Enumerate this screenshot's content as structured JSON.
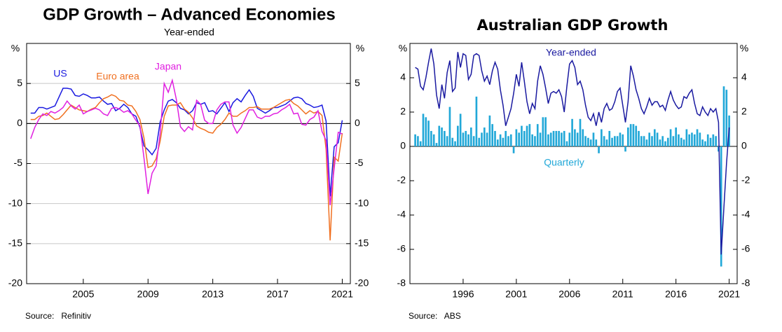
{
  "chart_data": [
    {
      "type": "line",
      "title": "GDP Growth – Advanced Economies",
      "subtitle": "Year-ended",
      "y_unit": "%",
      "source": "Source:   Refinitiv",
      "xlim": [
        2001.5,
        2021.5
      ],
      "xticks": [
        2005,
        2009,
        2013,
        2017,
        2021
      ],
      "ylim": [
        -20,
        10
      ],
      "yticks": [
        -20,
        -15,
        -10,
        -5,
        0,
        5
      ],
      "grid": true,
      "x": [
        2001.75,
        2002,
        2002.25,
        2002.5,
        2002.75,
        2003,
        2003.25,
        2003.5,
        2003.75,
        2004,
        2004.25,
        2004.5,
        2004.75,
        2005,
        2005.25,
        2005.5,
        2005.75,
        2006,
        2006.25,
        2006.5,
        2006.75,
        2007,
        2007.25,
        2007.5,
        2007.75,
        2008,
        2008.25,
        2008.5,
        2008.75,
        2009,
        2009.25,
        2009.5,
        2009.75,
        2010,
        2010.25,
        2010.5,
        2010.75,
        2011,
        2011.25,
        2011.5,
        2011.75,
        2012,
        2012.25,
        2012.5,
        2012.75,
        2013,
        2013.25,
        2013.5,
        2013.75,
        2014,
        2014.25,
        2014.5,
        2014.75,
        2015,
        2015.25,
        2015.5,
        2015.75,
        2016,
        2016.25,
        2016.5,
        2016.75,
        2017,
        2017.25,
        2017.5,
        2017.75,
        2018,
        2018.25,
        2018.5,
        2018.75,
        2019,
        2019.25,
        2019.5,
        2019.75,
        2020,
        2020.25,
        2020.5,
        2020.75,
        2021
      ],
      "series": [
        {
          "name": "US",
          "color": "#1a1ae0",
          "values": [
            1.3,
            1.3,
            2.0,
            2.0,
            1.8,
            2.0,
            2.2,
            3.3,
            4.4,
            4.4,
            4.3,
            3.5,
            3.4,
            3.7,
            3.5,
            3.2,
            3.2,
            3.3,
            2.8,
            2.4,
            2.5,
            1.6,
            1.9,
            2.4,
            2.0,
            1.2,
            0.9,
            -0.5,
            -2.8,
            -3.3,
            -3.9,
            -3.1,
            0.2,
            1.7,
            2.8,
            3.0,
            2.6,
            1.9,
            1.7,
            1.2,
            1.6,
            2.6,
            2.4,
            2.6,
            1.5,
            1.6,
            1.2,
            1.9,
            2.6,
            1.5,
            2.6,
            3.1,
            2.7,
            3.5,
            4.2,
            3.4,
            1.9,
            1.6,
            1.3,
            1.6,
            2.0,
            2.0,
            2.2,
            2.4,
            2.8,
            3.2,
            3.3,
            3.1,
            2.5,
            2.3,
            2.0,
            2.1,
            2.3,
            0.3,
            -9.1,
            -2.9,
            -2.4,
            0.4
          ]
        },
        {
          "name": "Euro area",
          "color": "#f07020",
          "values": [
            0.5,
            0.5,
            0.9,
            1.0,
            1.3,
            0.9,
            0.5,
            0.6,
            1.1,
            1.7,
            2.3,
            2.0,
            1.7,
            1.6,
            1.5,
            1.8,
            2.0,
            2.6,
            3.1,
            3.3,
            3.6,
            3.4,
            2.9,
            2.8,
            2.3,
            2.2,
            1.5,
            0.5,
            -1.8,
            -5.5,
            -5.3,
            -4.4,
            -2.2,
            0.9,
            2.2,
            2.3,
            2.3,
            2.6,
            1.8,
            1.4,
            0.7,
            -0.3,
            -0.6,
            -0.8,
            -1.1,
            -1.2,
            -0.5,
            -0.1,
            0.5,
            1.3,
            0.9,
            0.9,
            1.3,
            1.6,
            2.0,
            2.0,
            2.1,
            1.8,
            1.8,
            1.8,
            2.0,
            2.3,
            2.6,
            2.9,
            3.0,
            2.5,
            2.2,
            1.7,
            1.2,
            1.6,
            1.3,
            1.5,
            1.0,
            -3.2,
            -14.6,
            -4.2,
            -4.7,
            -1.2
          ]
        },
        {
          "name": "Japan",
          "color": "#e020e0",
          "values": [
            -1.9,
            -0.5,
            0.5,
            1.2,
            1.0,
            1.5,
            1.3,
            1.6,
            2.0,
            2.8,
            2.2,
            1.8,
            2.3,
            1.2,
            1.5,
            1.7,
            1.9,
            1.7,
            1.2,
            1.0,
            1.9,
            2.0,
            1.8,
            1.4,
            1.6,
            1.2,
            0.4,
            -0.3,
            -4.3,
            -8.8,
            -6.2,
            -5.3,
            -1.2,
            5.0,
            3.9,
            5.4,
            3.0,
            -0.4,
            -1.0,
            -0.4,
            -0.8,
            2.9,
            2.4,
            0.4,
            0.0,
            0.0,
            1.7,
            2.4,
            2.7,
            2.7,
            -0.2,
            -1.2,
            -0.5,
            0.6,
            1.7,
            1.7,
            0.8,
            0.6,
            0.9,
            0.9,
            1.2,
            1.3,
            1.7,
            2.0,
            2.4,
            1.2,
            1.3,
            -0.1,
            -0.2,
            0.5,
            0.8,
            1.6,
            -1.0,
            -2.1,
            -10.2,
            -5.6,
            -1.1,
            -1.3
          ]
        }
      ]
    },
    {
      "type": "combo",
      "title": "Australian GDP Growth",
      "y_unit": "%",
      "source": "Source:   ABS",
      "xlim": [
        1991,
        2021.75
      ],
      "xticks": [
        1996,
        2001,
        2006,
        2011,
        2016,
        2021
      ],
      "ylim": [
        -8,
        6
      ],
      "yticks": [
        -8,
        -6,
        -4,
        -2,
        0,
        2,
        4
      ],
      "grid": false,
      "x": [
        1991.5,
        1991.75,
        1992,
        1992.25,
        1992.5,
        1992.75,
        1993,
        1993.25,
        1993.5,
        1993.75,
        1994,
        1994.25,
        1994.5,
        1994.75,
        1995,
        1995.25,
        1995.5,
        1995.75,
        1996,
        1996.25,
        1996.5,
        1996.75,
        1997,
        1997.25,
        1997.5,
        1997.75,
        1998,
        1998.25,
        1998.5,
        1998.75,
        1999,
        1999.25,
        1999.5,
        1999.75,
        2000,
        2000.25,
        2000.5,
        2000.75,
        2001,
        2001.25,
        2001.5,
        2001.75,
        2002,
        2002.25,
        2002.5,
        2002.75,
        2003,
        2003.25,
        2003.5,
        2003.75,
        2004,
        2004.25,
        2004.5,
        2004.75,
        2005,
        2005.25,
        2005.5,
        2005.75,
        2006,
        2006.25,
        2006.5,
        2006.75,
        2007,
        2007.25,
        2007.5,
        2007.75,
        2008,
        2008.25,
        2008.5,
        2008.75,
        2009,
        2009.25,
        2009.5,
        2009.75,
        2010,
        2010.25,
        2010.5,
        2010.75,
        2011,
        2011.25,
        2011.5,
        2011.75,
        2012,
        2012.25,
        2012.5,
        2012.75,
        2013,
        2013.25,
        2013.5,
        2013.75,
        2014,
        2014.25,
        2014.5,
        2014.75,
        2015,
        2015.25,
        2015.5,
        2015.75,
        2016,
        2016.25,
        2016.5,
        2016.75,
        2017,
        2017.25,
        2017.5,
        2017.75,
        2018,
        2018.25,
        2018.5,
        2018.75,
        2019,
        2019.25,
        2019.5,
        2019.75,
        2020,
        2020.25,
        2020.5,
        2020.75,
        2021
      ],
      "series": [
        {
          "name": "Quarterly",
          "type": "bar",
          "color": "#22a8d8",
          "values": [
            0.7,
            0.6,
            0.3,
            1.9,
            1.7,
            1.5,
            0.9,
            0.7,
            0.2,
            1.2,
            1.1,
            0.9,
            0.6,
            2.3,
            0.5,
            0.3,
            1.2,
            1.9,
            0.8,
            0.9,
            0.7,
            1.1,
            0.6,
            2.9,
            0.5,
            0.8,
            1.1,
            0.8,
            1.8,
            1.3,
            0.9,
            0.4,
            0.7,
            0.5,
            0.9,
            0.6,
            0.7,
            -0.4,
            1.0,
            0.8,
            1.2,
            0.9,
            1.2,
            1.3,
            0.7,
            0.6,
            1.3,
            0.8,
            1.7,
            1.7,
            0.7,
            0.8,
            0.9,
            0.9,
            0.9,
            0.8,
            0.9,
            0.3,
            0.8,
            1.6,
            1.0,
            0.8,
            1.6,
            1.0,
            0.6,
            0.5,
            0.4,
            0.8,
            0.4,
            -0.4,
            1.0,
            0.6,
            0.4,
            0.9,
            0.5,
            0.6,
            0.6,
            0.8,
            0.7,
            -0.3,
            1.1,
            1.3,
            1.3,
            1.2,
            0.9,
            0.6,
            0.6,
            0.4,
            0.8,
            0.6,
            1.0,
            0.8,
            0.4,
            0.6,
            0.3,
            0.5,
            1.0,
            0.6,
            1.1,
            0.7,
            0.5,
            0.4,
            1.0,
            0.7,
            0.8,
            0.7,
            1.0,
            0.8,
            0.4,
            0.3,
            0.7,
            0.5,
            0.7,
            0.6,
            -0.3,
            -7.0,
            3.5,
            3.3,
            1.8
          ]
        },
        {
          "name": "Year-ended",
          "type": "line",
          "color": "#1a1aa0",
          "values": [
            4.6,
            4.5,
            3.5,
            3.3,
            4.0,
            4.9,
            5.7,
            4.8,
            3.0,
            2.2,
            3.6,
            2.8,
            4.3,
            5.0,
            3.2,
            3.4,
            5.5,
            4.6,
            5.4,
            5.3,
            3.9,
            4.2,
            5.3,
            5.4,
            5.3,
            4.4,
            3.8,
            4.1,
            3.6,
            4.4,
            4.9,
            4.5,
            3.3,
            2.4,
            1.2,
            1.7,
            2.2,
            3.1,
            4.2,
            3.5,
            4.9,
            3.8,
            2.6,
            1.9,
            2.5,
            2.2,
            3.8,
            4.7,
            4.2,
            3.4,
            2.5,
            3.1,
            3.2,
            3.1,
            3.3,
            2.9,
            2.0,
            3.5,
            4.8,
            5.0,
            4.6,
            3.6,
            3.8,
            3.3,
            2.4,
            1.7,
            1.5,
            1.9,
            1.2,
            2.0,
            1.4,
            2.2,
            2.5,
            2.1,
            2.2,
            2.6,
            3.2,
            3.4,
            2.4,
            1.4,
            2.6,
            4.7,
            4.1,
            3.3,
            2.8,
            2.2,
            1.9,
            2.3,
            2.8,
            2.4,
            2.6,
            2.6,
            2.3,
            2.4,
            2.1,
            2.7,
            3.2,
            2.7,
            2.4,
            2.2,
            2.3,
            2.9,
            2.8,
            3.1,
            3.3,
            2.5,
            1.9,
            1.8,
            2.3,
            2.0,
            1.8,
            2.2,
            2.0,
            2.2,
            1.4,
            -6.3,
            -3.6,
            -1.0,
            1.1
          ]
        }
      ]
    }
  ]
}
